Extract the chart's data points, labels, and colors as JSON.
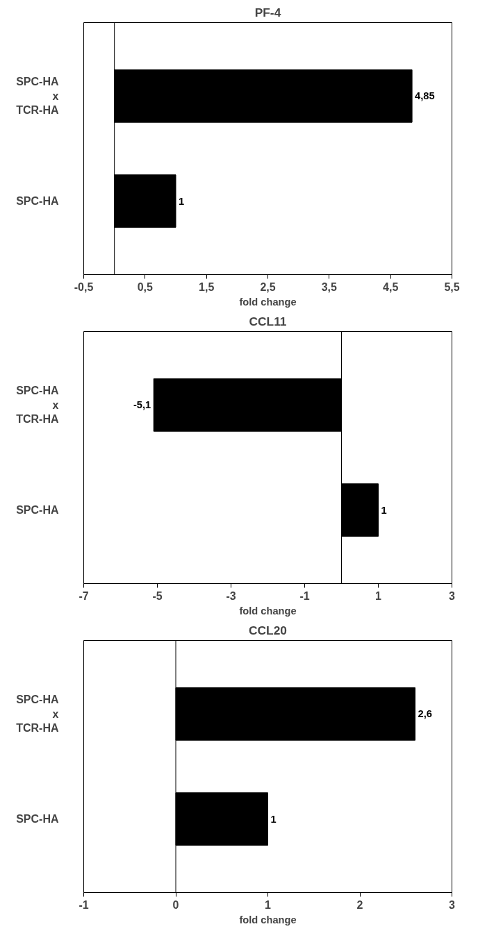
{
  "chart_data": [
    {
      "type": "bar",
      "orientation": "horizontal",
      "title": "PF-4",
      "xlabel": "fold change",
      "categories": [
        "SPC-HA\nx\nTCR-HA",
        "SPC-HA"
      ],
      "series": [
        {
          "color": "#000000",
          "values": [
            4.85,
            1
          ],
          "value_labels": [
            "4,85",
            "1"
          ]
        }
      ],
      "xlim": [
        -0.5,
        5.5
      ],
      "xticks": [
        {
          "value": -0.5,
          "label": "-0,5"
        },
        {
          "value": 0.5,
          "label": "0,5"
        },
        {
          "value": 1.5,
          "label": "1,5"
        },
        {
          "value": 2.5,
          "label": "2,5"
        },
        {
          "value": 3.5,
          "label": "3,5"
        },
        {
          "value": 4.5,
          "label": "4,5"
        },
        {
          "value": 5.5,
          "label": "5,5"
        }
      ],
      "ref_lines": [
        {
          "axis": "x",
          "value": 0,
          "color": "#000000"
        }
      ],
      "grid": false
    },
    {
      "type": "bar",
      "orientation": "horizontal",
      "title": "CCL11",
      "xlabel": "fold change",
      "categories": [
        "SPC-HA\nx\nTCR-HA",
        "SPC-HA"
      ],
      "series": [
        {
          "color": "#000000",
          "values": [
            -5.1,
            1
          ],
          "value_labels": [
            "-5,1",
            "1"
          ]
        }
      ],
      "xlim": [
        -7,
        3
      ],
      "xticks": [
        -7,
        -5,
        -3,
        -1,
        1,
        3
      ],
      "ref_lines": [
        {
          "axis": "x",
          "value": 0,
          "color": "#000000"
        }
      ],
      "grid": false
    },
    {
      "type": "bar",
      "orientation": "horizontal",
      "title": "CCL20",
      "xlabel": "fold change",
      "categories": [
        "SPC-HA\nx\nTCR-HA",
        "SPC-HA"
      ],
      "series": [
        {
          "color": "#000000",
          "values": [
            2.6,
            1
          ],
          "value_labels": [
            "2,6",
            "1"
          ]
        }
      ],
      "xlim": [
        -1,
        3
      ],
      "xticks": [
        -1,
        0,
        1,
        2,
        3
      ],
      "ref_lines": [
        {
          "axis": "x",
          "value": 0,
          "color": "#000000"
        }
      ],
      "grid": false
    }
  ]
}
